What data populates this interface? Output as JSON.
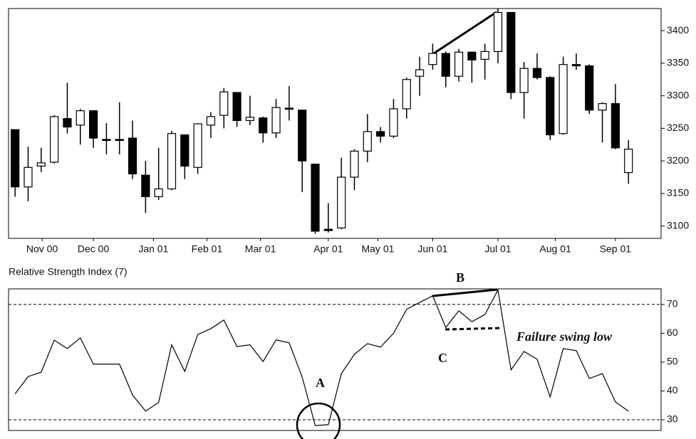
{
  "chart_data": [
    {
      "type": "candlestick",
      "open": [
        3248,
        3160,
        3192,
        3198,
        3265,
        3255,
        3277,
        3233,
        3233,
        3235,
        3178,
        3145,
        3157,
        3240,
        3190,
        3255,
        3270,
        3305,
        3262,
        3266,
        3243,
        3281,
        3278,
        3195,
        3095,
        3097,
        3175,
        3215,
        3245,
        3238,
        3280,
        3330,
        3348,
        3365,
        3330,
        3367,
        3356,
        3368,
        3428,
        3305,
        3342,
        3328,
        3242,
        3348,
        3346,
        3278,
        3288,
        3182
      ],
      "high": [
        3248,
        3222,
        3220,
        3270,
        3320,
        3280,
        3278,
        3258,
        3290,
        3262,
        3200,
        3220,
        3246,
        3240,
        3258,
        3275,
        3312,
        3305,
        3300,
        3268,
        3295,
        3315,
        3278,
        3195,
        3135,
        3205,
        3218,
        3272,
        3252,
        3295,
        3328,
        3360,
        3380,
        3368,
        3372,
        3368,
        3380,
        3434,
        3428,
        3352,
        3365,
        3330,
        3360,
        3365,
        3348,
        3290,
        3318,
        3232
      ],
      "low": [
        3145,
        3138,
        3183,
        3196,
        3242,
        3225,
        3220,
        3210,
        3210,
        3172,
        3120,
        3140,
        3155,
        3172,
        3180,
        3235,
        3250,
        3252,
        3255,
        3228,
        3235,
        3262,
        3152,
        3088,
        3090,
        3095,
        3155,
        3198,
        3228,
        3235,
        3265,
        3300,
        3340,
        3313,
        3322,
        3320,
        3325,
        3350,
        3295,
        3265,
        3325,
        3232,
        3240,
        3340,
        3272,
        3228,
        3218,
        3165
      ],
      "close": [
        3160,
        3190,
        3197,
        3268,
        3252,
        3277,
        3235,
        3232,
        3232,
        3180,
        3145,
        3157,
        3242,
        3192,
        3257,
        3268,
        3306,
        3262,
        3267,
        3243,
        3282,
        3280,
        3200,
        3092,
        3093,
        3175,
        3215,
        3245,
        3238,
        3280,
        3325,
        3340,
        3365,
        3330,
        3367,
        3355,
        3368,
        3428,
        3305,
        3342,
        3328,
        3240,
        3348,
        3346,
        3278,
        3288,
        3220,
        3218
      ],
      "up_color": "#ffffff",
      "down_color": "#000000",
      "xlim": [
        -0.5,
        49.5
      ],
      "ylim": [
        3081,
        3434
      ],
      "xticks": [
        {
          "value": 2.07,
          "label": "Nov 00"
        },
        {
          "value": 6,
          "label": "Dec 00"
        },
        {
          "value": 10.6,
          "label": "Jan 01"
        },
        {
          "value": 14.7,
          "label": "Feb 01"
        },
        {
          "value": 18.8,
          "label": "Mar 01"
        },
        {
          "value": 24,
          "label": "Apr 01"
        },
        {
          "value": 27.8,
          "label": "May 01"
        },
        {
          "value": 32,
          "label": "Jun 01"
        },
        {
          "value": 37,
          "label": "Jul 01"
        },
        {
          "value": 41.4,
          "label": "Aug 01"
        },
        {
          "value": 46,
          "label": "Sep 01"
        }
      ],
      "yticks": [
        3100,
        3150,
        3200,
        3250,
        3300,
        3350,
        3400
      ]
    },
    {
      "type": "line",
      "title": "Relative Strength Index (7)",
      "values": [
        39,
        45,
        46.5,
        57.6,
        54.7,
        58.4,
        49.3,
        49.3,
        49.3,
        38.6,
        33,
        36,
        56,
        46.8,
        59.6,
        61.6,
        64.6,
        55.4,
        56,
        50.2,
        57.7,
        56.7,
        44.8,
        28,
        28.3,
        46,
        52.7,
        56.4,
        55.2,
        60,
        68.3,
        70.7,
        73,
        62,
        67.8,
        64,
        66.5,
        75,
        47.3,
        53.7,
        51,
        37.9,
        54.7,
        54,
        44.3,
        46,
        36.2,
        33
      ],
      "color": "#000000",
      "xlim": [
        -0.5,
        49.5
      ],
      "ylim": [
        26.3,
        75.4
      ],
      "yticks": [
        30,
        40,
        50,
        60,
        70
      ],
      "reference_lines": [
        30,
        70
      ],
      "annotations": [
        "A",
        "B",
        "C",
        "Failure swing low"
      ]
    }
  ]
}
